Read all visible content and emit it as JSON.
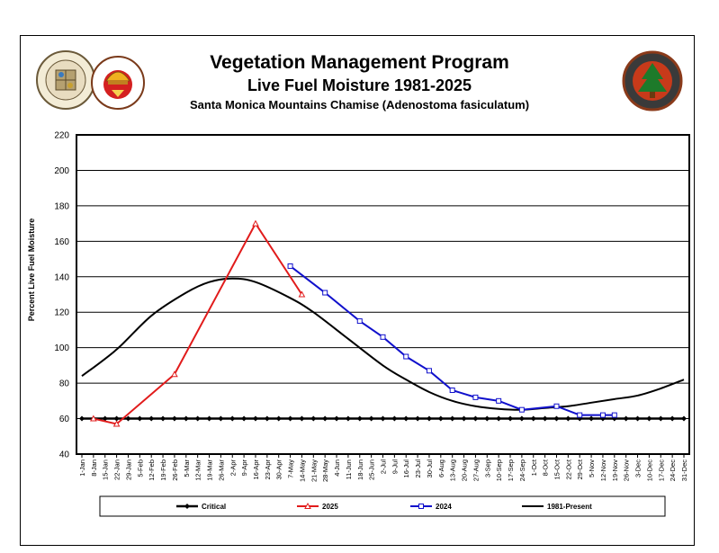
{
  "header": {
    "title": "Vegetation Management Program",
    "subtitle": "Live Fuel Moisture 1981-2025",
    "species": "Santa Monica Mountains Chamise (Adenostoma fasiculatum)"
  },
  "logos": {
    "county_seal_text": "COUNTY OF LOS ANGELES · CALIFORNIA",
    "fire_dept_text": "FIRE DEPARTMENT",
    "forestry_text": "FORESTRY DIVISION"
  },
  "colors": {
    "critical": "#000000",
    "s2025": "#e11b1b",
    "s2024": "#1010cc",
    "avg": "#000000"
  },
  "chart_data": {
    "type": "line",
    "title": "Live Fuel Moisture 1981-2025",
    "ylabel": "Percent Live Fuel Moisture",
    "ylim": [
      40,
      220
    ],
    "yticks": [
      40,
      60,
      80,
      100,
      120,
      140,
      160,
      180,
      200,
      220
    ],
    "grid": "horizontal",
    "legend_position": "bottom",
    "categories": [
      "1-Jan",
      "8-Jan",
      "15-Jan",
      "22-Jan",
      "29-Jan",
      "5-Feb",
      "12-Feb",
      "19-Feb",
      "26-Feb",
      "5-Mar",
      "12-Mar",
      "19-Mar",
      "26-Mar",
      "2-Apr",
      "9-Apr",
      "16-Apr",
      "23-Apr",
      "30-Apr",
      "7-May",
      "14-May",
      "21-May",
      "28-May",
      "4-Jun",
      "11-Jun",
      "18-Jun",
      "25-Jun",
      "2-Jul",
      "9-Jul",
      "16-Jul",
      "23-Jul",
      "30-Jul",
      "6-Aug",
      "13-Aug",
      "20-Aug",
      "27-Aug",
      "3-Sep",
      "10-Sep",
      "17-Sep",
      "24-Sep",
      "1-Oct",
      "8-Oct",
      "15-Oct",
      "22-Oct",
      "29-Oct",
      "5-Nov",
      "12-Nov",
      "19-Nov",
      "26-Nov",
      "3-Dec",
      "10-Dec",
      "17-Dec",
      "24-Dec",
      "31-Dec"
    ],
    "series": [
      {
        "name": "Critical",
        "points": [
          [
            0,
            60
          ],
          [
            1,
            60
          ],
          [
            2,
            60
          ],
          [
            3,
            60
          ],
          [
            4,
            60
          ],
          [
            5,
            60
          ],
          [
            6,
            60
          ],
          [
            7,
            60
          ],
          [
            8,
            60
          ],
          [
            9,
            60
          ],
          [
            10,
            60
          ],
          [
            11,
            60
          ],
          [
            12,
            60
          ],
          [
            13,
            60
          ],
          [
            14,
            60
          ],
          [
            15,
            60
          ],
          [
            16,
            60
          ],
          [
            17,
            60
          ],
          [
            18,
            60
          ],
          [
            19,
            60
          ],
          [
            20,
            60
          ],
          [
            21,
            60
          ],
          [
            22,
            60
          ],
          [
            23,
            60
          ],
          [
            24,
            60
          ],
          [
            25,
            60
          ],
          [
            26,
            60
          ],
          [
            27,
            60
          ],
          [
            28,
            60
          ],
          [
            29,
            60
          ],
          [
            30,
            60
          ],
          [
            31,
            60
          ],
          [
            32,
            60
          ],
          [
            33,
            60
          ],
          [
            34,
            60
          ],
          [
            35,
            60
          ],
          [
            36,
            60
          ],
          [
            37,
            60
          ],
          [
            38,
            60
          ],
          [
            39,
            60
          ],
          [
            40,
            60
          ],
          [
            41,
            60
          ],
          [
            42,
            60
          ],
          [
            43,
            60
          ],
          [
            44,
            60
          ],
          [
            45,
            60
          ],
          [
            46,
            60
          ],
          [
            47,
            60
          ],
          [
            48,
            60
          ],
          [
            49,
            60
          ],
          [
            50,
            60
          ],
          [
            51,
            60
          ],
          [
            52,
            60
          ]
        ]
      },
      {
        "name": "2025",
        "points": [
          [
            1,
            60
          ],
          [
            3,
            57
          ],
          [
            8,
            85
          ],
          [
            15,
            170
          ],
          [
            19,
            130
          ]
        ]
      },
      {
        "name": "2024",
        "points": [
          [
            18,
            146
          ],
          [
            21,
            131
          ],
          [
            24,
            115
          ],
          [
            26,
            106
          ],
          [
            28,
            95
          ],
          [
            30,
            87
          ],
          [
            32,
            76
          ],
          [
            34,
            72
          ],
          [
            36,
            70
          ],
          [
            38,
            65
          ],
          [
            41,
            67
          ],
          [
            43,
            62
          ],
          [
            45,
            62
          ],
          [
            46,
            62
          ]
        ]
      },
      {
        "name": "1981-Present",
        "points": [
          [
            0,
            84
          ],
          [
            3,
            99
          ],
          [
            6,
            118
          ],
          [
            9,
            131
          ],
          [
            11,
            137
          ],
          [
            13,
            139
          ],
          [
            15,
            137
          ],
          [
            18,
            128
          ],
          [
            20,
            120
          ],
          [
            23,
            105
          ],
          [
            26,
            90
          ],
          [
            28,
            82
          ],
          [
            30,
            75
          ],
          [
            32,
            70
          ],
          [
            34,
            67
          ],
          [
            36,
            65.5
          ],
          [
            38,
            65
          ],
          [
            40,
            66
          ],
          [
            42,
            67
          ],
          [
            44,
            69
          ],
          [
            46,
            71
          ],
          [
            48,
            73
          ],
          [
            50,
            77
          ],
          [
            52,
            82
          ]
        ]
      }
    ]
  }
}
